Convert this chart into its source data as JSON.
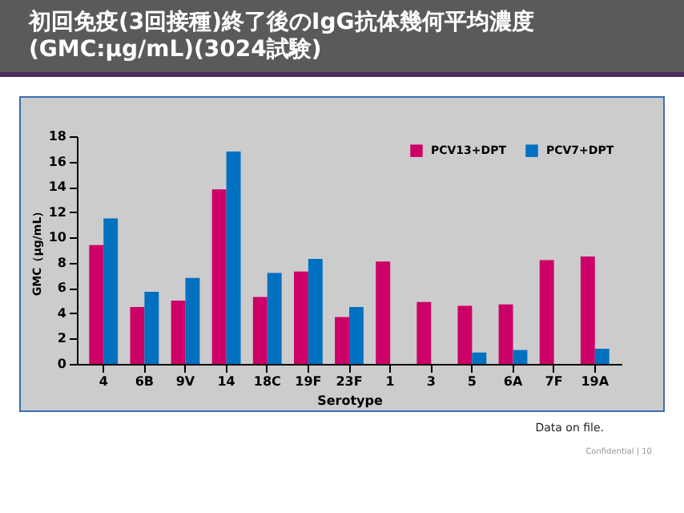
{
  "chart_data": {
    "type": "bar",
    "title": "初回免疫(3回接種)終了後のIgG抗体幾何平均濃度\n(GMC:μg/mL)(3024試験)",
    "xlabel": "Serotype",
    "ylabel": "GMC（μg/mL）",
    "categories": [
      "4",
      "6B",
      "9V",
      "14",
      "18C",
      "19F",
      "23F",
      "1",
      "3",
      "5",
      "6A",
      "7F",
      "19A"
    ],
    "series": [
      {
        "name": "PCV13+DPT",
        "color": "#cc0066",
        "values": [
          9.4,
          4.5,
          5.0,
          13.8,
          5.3,
          7.3,
          3.7,
          8.1,
          4.9,
          4.6,
          4.7,
          8.2,
          8.5
        ]
      },
      {
        "name": "PCV7+DPT",
        "color": "#0070c0",
        "values": [
          11.5,
          5.7,
          6.8,
          16.8,
          7.2,
          8.3,
          4.5,
          null,
          null,
          0.9,
          1.1,
          null,
          1.2
        ]
      }
    ],
    "ylim": [
      0,
      18
    ],
    "yticks": [
      0,
      2,
      4,
      6,
      8,
      10,
      12,
      14,
      16,
      18
    ],
    "grid": false,
    "legend": "top right",
    "annotations": [
      "Data on file.",
      "Confidential | 10"
    ]
  }
}
